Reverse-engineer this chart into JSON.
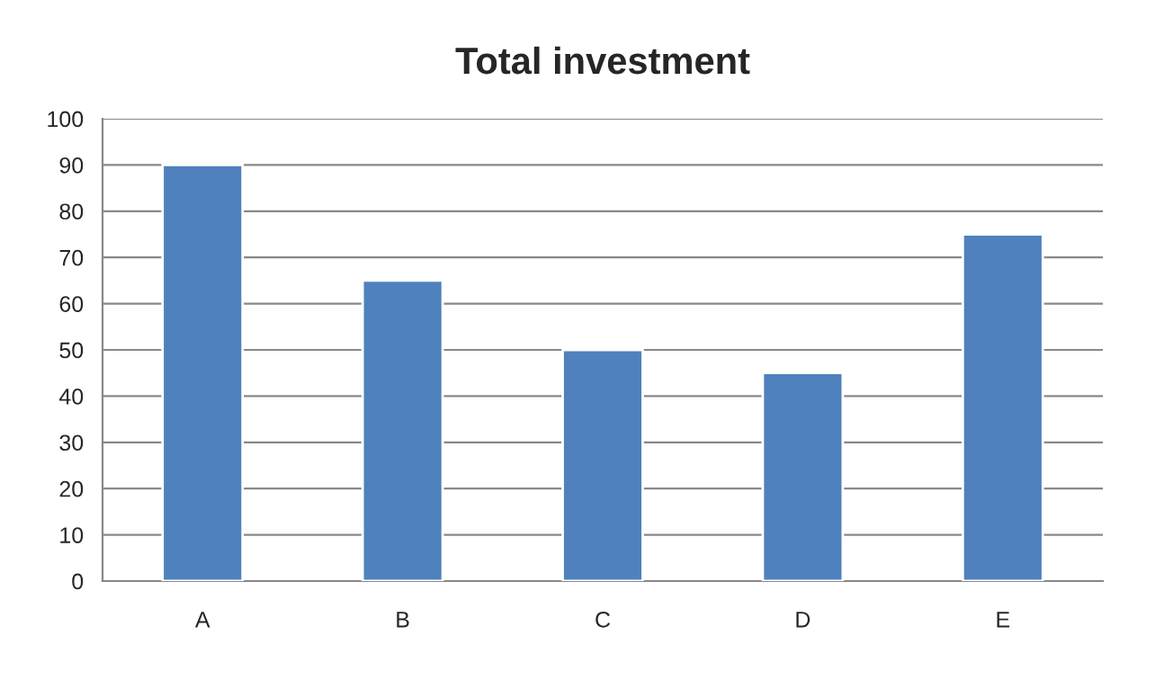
{
  "chart_data": {
    "type": "bar",
    "title": "Total investment",
    "categories": [
      "A",
      "B",
      "C",
      "D",
      "E"
    ],
    "values": [
      90,
      65,
      50,
      45,
      75
    ],
    "color": "#4f81bd",
    "ylim": [
      0,
      100
    ],
    "yticks": [
      0,
      10,
      20,
      30,
      40,
      50,
      60,
      70,
      80,
      90,
      100
    ],
    "grid": "y"
  }
}
